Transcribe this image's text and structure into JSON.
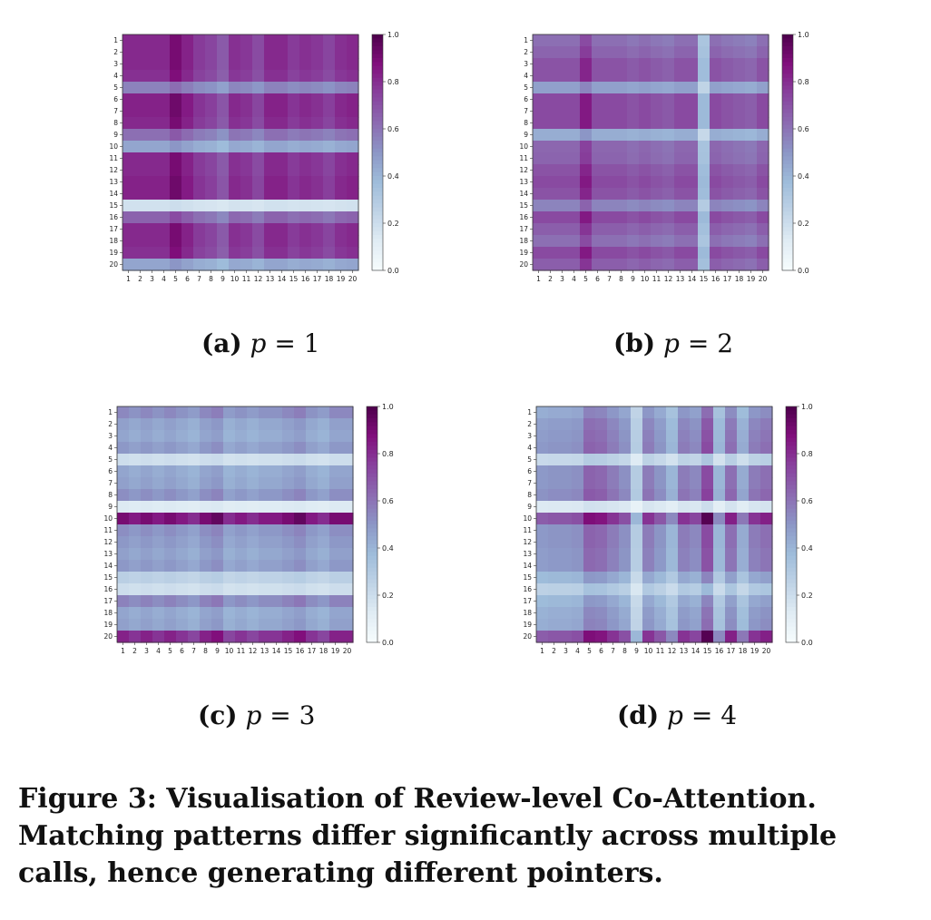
{
  "colormap": [
    "#f7fcfd",
    "#e0ecf4",
    "#bfd3e6",
    "#9ebcda",
    "#8c96c6",
    "#8c6bb1",
    "#88419d",
    "#810f7c",
    "#4d004b"
  ],
  "figure_caption": "Figure 3: Visualisation of Review-level Co-Attention. Matching patterns differ significantly across multiple calls, hence generating different pointers.",
  "chart_data": [
    {
      "type": "heatmap",
      "subcaption_label": "(a)",
      "subcaption_var": "p",
      "subcaption_eq": "= 1",
      "x_ticks": [
        "1",
        "2",
        "3",
        "4",
        "5",
        "6",
        "7",
        "8",
        "9",
        "10",
        "11",
        "12",
        "13",
        "14",
        "15",
        "16",
        "17",
        "18",
        "19",
        "20"
      ],
      "y_ticks": [
        "1",
        "2",
        "3",
        "4",
        "5",
        "6",
        "7",
        "8",
        "9",
        "10",
        "11",
        "12",
        "13",
        "14",
        "15",
        "16",
        "17",
        "18",
        "19",
        "20"
      ],
      "colorbar_ticks": [
        "0.0",
        "0.2",
        "0.4",
        "0.6",
        "0.8",
        "1.0"
      ],
      "vmin": 0,
      "vmax": 1,
      "row_factors": [
        0.9,
        0.9,
        0.9,
        0.88,
        0.62,
        0.92,
        0.92,
        0.9,
        0.68,
        0.5,
        0.9,
        0.9,
        0.92,
        0.92,
        0.2,
        0.72,
        0.9,
        0.9,
        0.88,
        0.5
      ],
      "col_factors": [
        0.9,
        0.9,
        0.9,
        0.9,
        1.0,
        0.92,
        0.85,
        0.82,
        0.75,
        0.88,
        0.86,
        0.8,
        0.9,
        0.9,
        0.85,
        0.88,
        0.86,
        0.82,
        0.88,
        0.9
      ]
    },
    {
      "type": "heatmap",
      "subcaption_label": "(b)",
      "subcaption_var": "p",
      "subcaption_eq": "= 2",
      "x_ticks": [
        "1",
        "2",
        "3",
        "4",
        "5",
        "6",
        "7",
        "8",
        "9",
        "10",
        "11",
        "12",
        "13",
        "14",
        "15",
        "16",
        "17",
        "18",
        "19",
        "20"
      ],
      "y_ticks": [
        "1",
        "2",
        "3",
        "4",
        "5",
        "6",
        "7",
        "8",
        "9",
        "10",
        "11",
        "12",
        "13",
        "14",
        "15",
        "16",
        "17",
        "18",
        "19",
        "20"
      ],
      "colorbar_ticks": [
        "0.0",
        "0.2",
        "0.4",
        "0.6",
        "0.8",
        "1.0"
      ],
      "vmin": 0,
      "vmax": 1,
      "row_factors": [
        0.72,
        0.76,
        0.82,
        0.82,
        0.55,
        0.85,
        0.85,
        0.85,
        0.5,
        0.75,
        0.76,
        0.82,
        0.85,
        0.82,
        0.65,
        0.85,
        0.78,
        0.72,
        0.85,
        0.78
      ],
      "col_factors": [
        0.85,
        0.85,
        0.85,
        0.85,
        1.0,
        0.85,
        0.85,
        0.85,
        0.82,
        0.85,
        0.82,
        0.8,
        0.85,
        0.85,
        0.45,
        0.85,
        0.82,
        0.8,
        0.78,
        0.85
      ]
    },
    {
      "type": "heatmap",
      "subcaption_label": "(c)",
      "subcaption_var": "p",
      "subcaption_eq": "= 3",
      "x_ticks": [
        "1",
        "2",
        "3",
        "4",
        "5",
        "6",
        "7",
        "8",
        "9",
        "10",
        "11",
        "12",
        "13",
        "14",
        "15",
        "16",
        "17",
        "18",
        "19",
        "20"
      ],
      "y_ticks": [
        "1",
        "2",
        "3",
        "4",
        "5",
        "6",
        "7",
        "8",
        "9",
        "10",
        "11",
        "12",
        "13",
        "14",
        "15",
        "16",
        "17",
        "18",
        "19",
        "20"
      ],
      "colorbar_ticks": [
        "0.0",
        "0.2",
        "0.4",
        "0.6",
        "0.8",
        "1.0"
      ],
      "vmin": 0,
      "vmax": 1,
      "row_factors": [
        0.6,
        0.52,
        0.5,
        0.55,
        0.22,
        0.5,
        0.52,
        0.58,
        0.15,
        1.0,
        0.58,
        0.55,
        0.52,
        0.55,
        0.3,
        0.22,
        0.62,
        0.5,
        0.52,
        0.92
      ],
      "col_factors": [
        0.9,
        0.85,
        0.9,
        0.85,
        0.9,
        0.85,
        0.8,
        0.9,
        0.95,
        0.8,
        0.85,
        0.8,
        0.85,
        0.85,
        0.9,
        0.95,
        0.85,
        0.8,
        0.9,
        0.9
      ]
    },
    {
      "type": "heatmap",
      "subcaption_label": "(d)",
      "subcaption_var": "p",
      "subcaption_eq": "= 4",
      "x_ticks": [
        "1",
        "2",
        "3",
        "4",
        "5",
        "6",
        "7",
        "8",
        "9",
        "10",
        "11",
        "12",
        "13",
        "14",
        "15",
        "16",
        "17",
        "18",
        "19",
        "20"
      ],
      "y_ticks": [
        "1",
        "2",
        "3",
        "4",
        "5",
        "6",
        "7",
        "8",
        "9",
        "10",
        "11",
        "12",
        "13",
        "14",
        "15",
        "16",
        "17",
        "18",
        "19",
        "20"
      ],
      "colorbar_ticks": [
        "0.0",
        "0.2",
        "0.4",
        "0.6",
        "0.8",
        "1.0"
      ],
      "vmin": 0,
      "vmax": 1,
      "row_factors": [
        0.62,
        0.68,
        0.7,
        0.72,
        0.32,
        0.72,
        0.72,
        0.75,
        0.2,
        0.98,
        0.72,
        0.72,
        0.7,
        0.7,
        0.55,
        0.38,
        0.55,
        0.6,
        0.62,
        0.98
      ],
      "col_factors": [
        0.68,
        0.7,
        0.7,
        0.72,
        0.9,
        0.88,
        0.8,
        0.72,
        0.4,
        0.8,
        0.7,
        0.55,
        0.8,
        0.75,
        1.0,
        0.55,
        0.85,
        0.6,
        0.8,
        0.85
      ]
    }
  ]
}
